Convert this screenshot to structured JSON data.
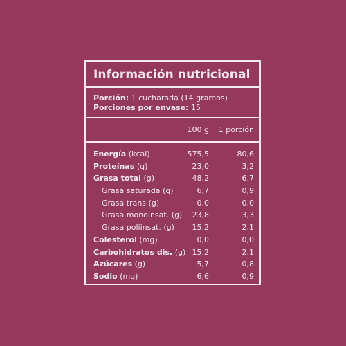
{
  "title": "Información nutricional",
  "serving": {
    "portion_label": "Porción:",
    "portion_value": " 1 cucharada (14 gramos)",
    "servings_label": "Porciones por envase:",
    "servings_value": " 15"
  },
  "columns": {
    "per100": "100 g",
    "perPortion": "1 porción"
  },
  "rows": [
    {
      "name": "Energía",
      "unit": " (kcal)",
      "v1": "575,5",
      "v2": "80,6",
      "bold": true,
      "sub": false
    },
    {
      "name": "Proteínas",
      "unit": " (g)",
      "v1": "23,0",
      "v2": "3,2",
      "bold": true,
      "sub": false
    },
    {
      "name": "Grasa total",
      "unit": " (g)",
      "v1": "48,2",
      "v2": "6,7",
      "bold": true,
      "sub": false
    },
    {
      "name": "Grasa saturada",
      "unit": " (g)",
      "v1": "6,7",
      "v2": "0,9",
      "bold": false,
      "sub": true
    },
    {
      "name": "Grasa trans",
      "unit": " (g)",
      "v1": "0,0",
      "v2": "0,0",
      "bold": false,
      "sub": true
    },
    {
      "name": "Grasa monoinsat.",
      "unit": " (g)",
      "v1": "23,8",
      "v2": "3,3",
      "bold": false,
      "sub": true
    },
    {
      "name": "Grasa poliinsat.",
      "unit": " (g)",
      "v1": "15,2",
      "v2": "2,1",
      "bold": false,
      "sub": true
    },
    {
      "name": "Colesterol",
      "unit": " (mg)",
      "v1": "0,0",
      "v2": "0,0",
      "bold": true,
      "sub": false
    },
    {
      "name": "Carbohidratos dis.",
      "unit": " (g)",
      "v1": "15,2",
      "v2": "2,1",
      "bold": true,
      "sub": false
    },
    {
      "name": "Azúcares",
      "unit": " (g)",
      "v1": "5,7",
      "v2": "0,8",
      "bold": true,
      "sub": false
    },
    {
      "name": "Sodio",
      "unit": " (mg)",
      "v1": "6,6",
      "v2": "0,9",
      "bold": true,
      "sub": false
    }
  ],
  "colors": {
    "background": "#94395b",
    "foreground": "#f4e9ee"
  }
}
